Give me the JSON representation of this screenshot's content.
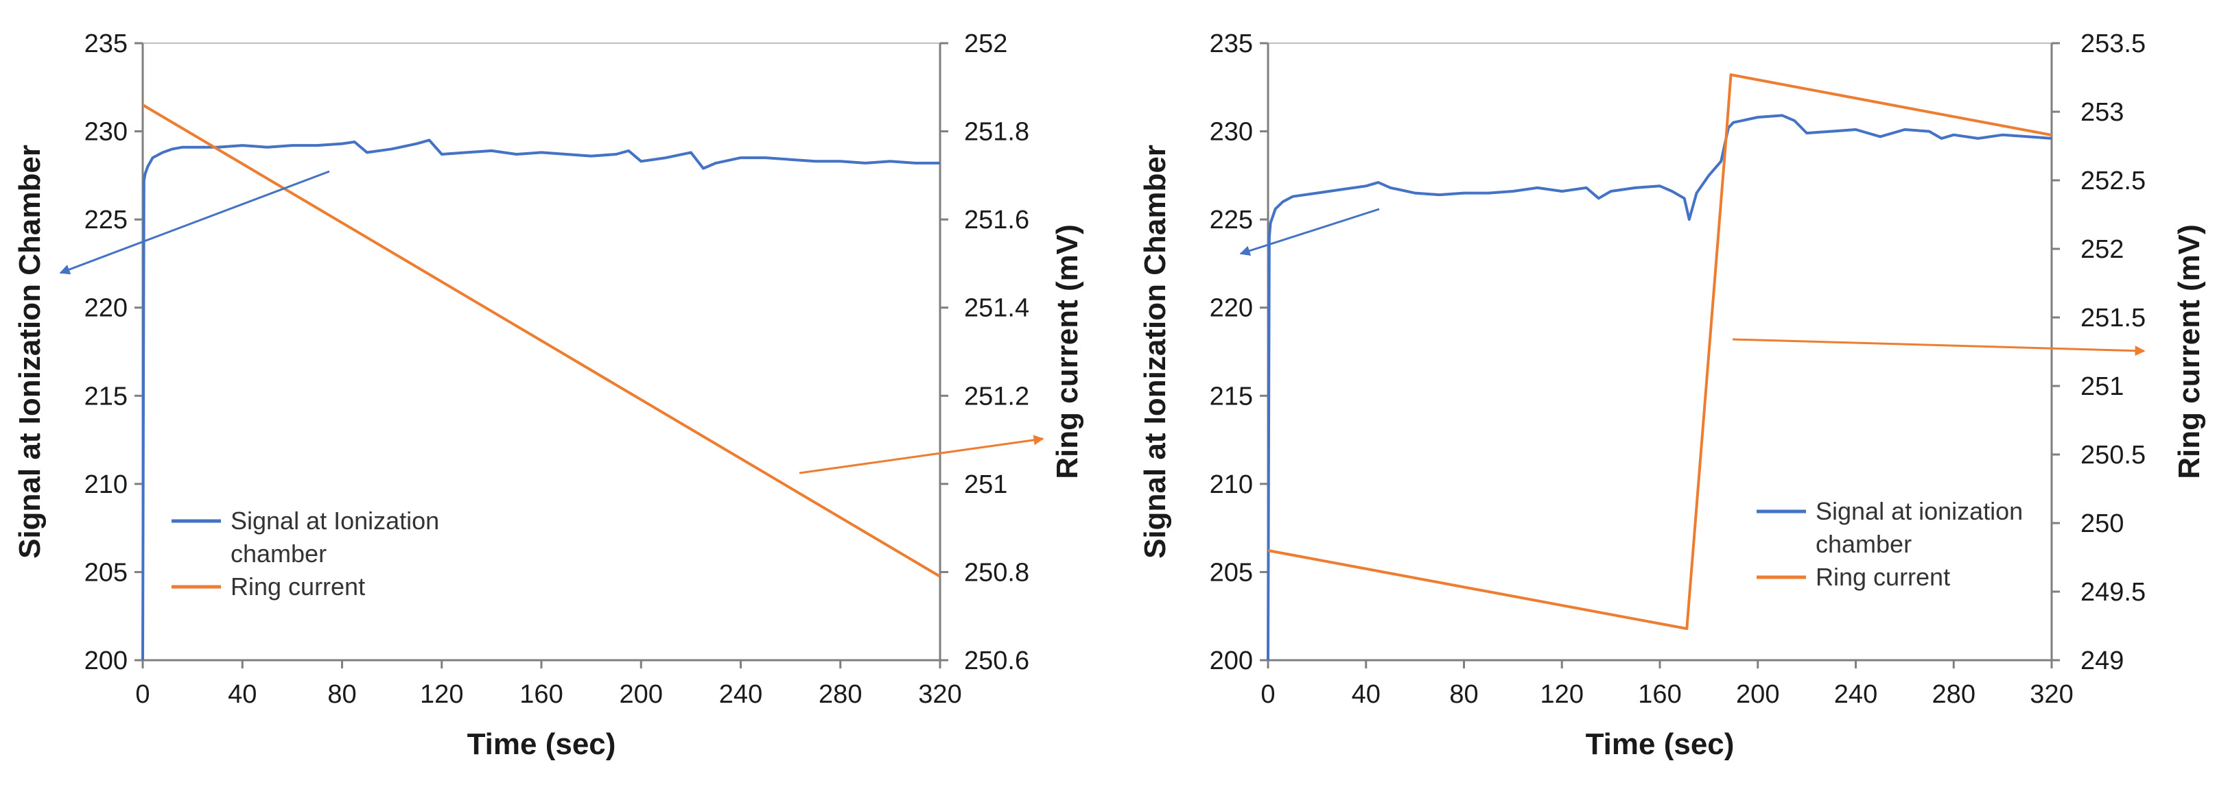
{
  "chart_data": [
    {
      "type": "line",
      "xlabel": "Time (sec)",
      "ylabel": "Signal at Ionization Chamber",
      "y2label": "Ring current (mV)",
      "xlim": [
        0,
        320
      ],
      "ylim": [
        200,
        235
      ],
      "y2lim": [
        250.6,
        252
      ],
      "x_ticks": [
        "0",
        "40",
        "80",
        "120",
        "160",
        "200",
        "240",
        "280",
        "320"
      ],
      "y_ticks": [
        "200",
        "205",
        "210",
        "215",
        "220",
        "225",
        "230",
        "235"
      ],
      "y2_ticks": [
        "250.6",
        "250.8",
        "251",
        "251.2",
        "251.4",
        "251.6",
        "251.8",
        "252"
      ],
      "grid": false,
      "legend_position": "lower-left",
      "legend": [
        "Signal at Ionization",
        "chamber",
        "Ring current"
      ],
      "series": [
        {
          "axis": "left",
          "color": "#4472C4",
          "x": [
            0,
            0.5,
            1,
            2,
            4,
            8,
            12,
            16,
            20,
            30,
            40,
            50,
            60,
            70,
            80,
            85,
            90,
            100,
            110,
            115,
            120,
            130,
            140,
            150,
            160,
            170,
            180,
            190,
            195,
            200,
            210,
            220,
            225,
            230,
            240,
            250,
            260,
            270,
            280,
            290,
            300,
            310,
            320
          ],
          "y": [
            200,
            227.2,
            227.6,
            228.0,
            228.5,
            228.8,
            229.0,
            229.1,
            229.1,
            229.1,
            229.2,
            229.1,
            229.2,
            229.2,
            229.3,
            229.4,
            228.8,
            229.0,
            229.3,
            229.5,
            228.7,
            228.8,
            228.9,
            228.7,
            228.8,
            228.7,
            228.6,
            228.7,
            228.9,
            228.3,
            228.5,
            228.8,
            227.9,
            228.2,
            228.5,
            228.5,
            228.4,
            228.3,
            228.3,
            228.2,
            228.3,
            228.2,
            228.2
          ]
        },
        {
          "axis": "right",
          "color": "#ED7D31",
          "x": [
            0,
            320
          ],
          "y": [
            251.86,
            250.79
          ]
        }
      ]
    },
    {
      "type": "line",
      "xlabel": "Time (sec)",
      "ylabel": "Signal at Ionization Chamber",
      "y2label": "Ring current (mV)",
      "xlim": [
        0,
        320
      ],
      "ylim": [
        200,
        235
      ],
      "y2lim": [
        249,
        253.5
      ],
      "x_ticks": [
        "0",
        "40",
        "80",
        "120",
        "160",
        "200",
        "240",
        "280",
        "320"
      ],
      "y_ticks": [
        "200",
        "205",
        "210",
        "215",
        "220",
        "225",
        "230",
        "235"
      ],
      "y2_ticks": [
        "249",
        "249.5",
        "250",
        "250.5",
        "251",
        "251.5",
        "252",
        "252.5",
        "253",
        "253.5"
      ],
      "grid": false,
      "legend_position": "lower-right",
      "legend": [
        "Signal at ionization",
        "chamber",
        "Ring current"
      ],
      "series": [
        {
          "axis": "left",
          "color": "#4472C4",
          "x": [
            0,
            0.5,
            1,
            3,
            6,
            10,
            20,
            30,
            40,
            45,
            50,
            60,
            70,
            80,
            90,
            100,
            110,
            120,
            130,
            135,
            140,
            150,
            160,
            165,
            170,
            172,
            175,
            180,
            185,
            188,
            190,
            200,
            210,
            215,
            220,
            230,
            240,
            250,
            260,
            270,
            275,
            280,
            290,
            300,
            310,
            320
          ],
          "y": [
            200,
            224.0,
            224.8,
            225.6,
            226.0,
            226.3,
            226.5,
            226.7,
            226.9,
            227.1,
            226.8,
            226.5,
            226.4,
            226.5,
            226.5,
            226.6,
            226.8,
            226.6,
            226.8,
            226.2,
            226.6,
            226.8,
            226.9,
            226.6,
            226.2,
            225.0,
            226.5,
            227.5,
            228.3,
            230.2,
            230.5,
            230.8,
            230.9,
            230.6,
            229.9,
            230.0,
            230.1,
            229.7,
            230.1,
            230.0,
            229.6,
            229.8,
            229.6,
            229.8,
            229.7,
            229.6
          ]
        },
        {
          "axis": "right",
          "color": "#ED7D31",
          "x": [
            0,
            171,
            187,
            189,
            320
          ],
          "y": [
            249.8,
            249.23,
            252.8,
            253.27,
            252.83
          ]
        }
      ]
    }
  ]
}
